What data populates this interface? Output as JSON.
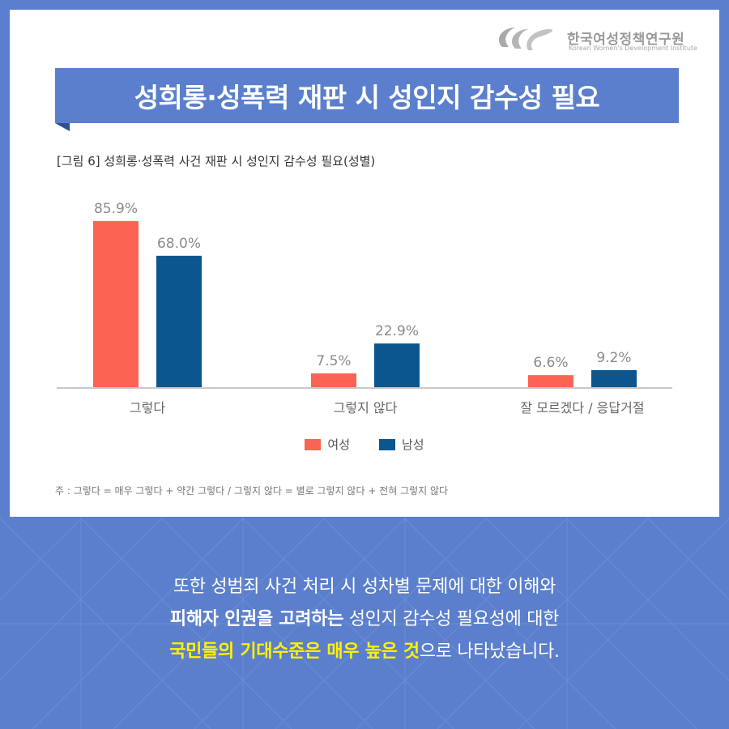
{
  "header": {
    "org_name_ko": "한국여성정책연구원",
    "org_name_en": "Korean Women's Development Institute",
    "title": "성희롱·성폭력 재판 시 성인지 감수성 필요"
  },
  "colors": {
    "background": "#5b7fcc",
    "female": "#fb6452",
    "male": "#0b568f",
    "highlight": "#fff200"
  },
  "chart_data": {
    "type": "bar",
    "title": "[그림 6] 성희롱·성폭력 사건 재판 시 성인지 감수성 필요(성별)",
    "categories": [
      "그렇다",
      "그렇지 않다",
      "잘 모르겠다 / 응답거절"
    ],
    "series": [
      {
        "name": "여성",
        "values": [
          85.9,
          7.5,
          6.6
        ],
        "labels": [
          "85.9%",
          "7.5%",
          "6.6%"
        ]
      },
      {
        "name": "남성",
        "values": [
          68.0,
          22.9,
          9.2
        ],
        "labels": [
          "68.0%",
          "22.9%",
          "9.2%"
        ]
      }
    ],
    "ylim": [
      0,
      100
    ],
    "grid": false,
    "legend_position": "bottom-center"
  },
  "footnote": "주 : 그렇다 = 매우 그렇다 + 약간 그렇다 / 그렇지 않다 = 별로 그렇지 않다 + 전혀 그렇지 않다",
  "body": {
    "line1": "또한 성범죄 사건 처리 시 성차별 문제에 대한 이해와",
    "line2_bold": "피해자 인권을 고려하는",
    "line2_rest": " 성인지 감수성 필요성에 대한",
    "line3_highlight": "국민들의 기대수준은 매우 높은 것",
    "line3_rest": "으로 나타났습니다."
  }
}
